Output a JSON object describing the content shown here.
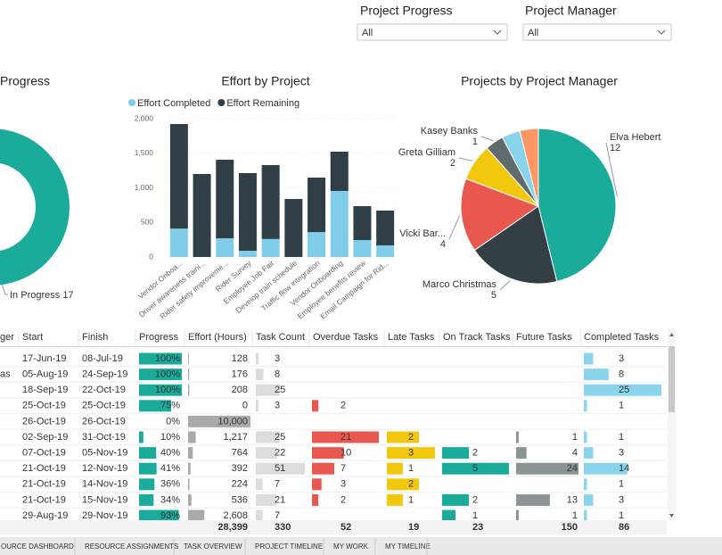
{
  "filters": [
    {
      "label": "Project Progress",
      "value": "All"
    },
    {
      "label": "Project Manager",
      "value": "All"
    }
  ],
  "chart_data": [
    {
      "type": "donut",
      "title": "Progress",
      "categories": [
        "In Progress"
      ],
      "values": [
        17
      ],
      "colors": [
        "#1aab9b"
      ]
    },
    {
      "type": "bar",
      "stacked": true,
      "title": "Effort by Project",
      "categories": [
        "Vendor Onboa...",
        "Driver awareness traini...",
        "Rider safety improveme...",
        "Rider Survey",
        "Employee Job Fair",
        "Develop train schedule",
        "Traffic flow integration",
        "Vendor Onboarding",
        "Employee benefits review",
        "Email Campaign for Rid..."
      ],
      "series": [
        {
          "name": "Effort Completed",
          "color": "#7fcde8",
          "values": [
            410,
            0,
            270,
            90,
            260,
            0,
            360,
            955,
            245,
            168
          ]
        },
        {
          "name": "Effort Remaining",
          "color": "#2f3f45",
          "values": [
            1512,
            1200,
            1136,
            1123,
            1069,
            839,
            788,
            568,
            490,
            503
          ]
        }
      ],
      "ylim": [
        0,
        2000
      ],
      "yticks": [
        0,
        500,
        {
          "value": 1000,
          "label": "1,000"
        },
        {
          "value": 1500,
          "label": "1,500"
        },
        {
          "value": 2000,
          "label": "2,000"
        }
      ],
      "grid": true
    },
    {
      "type": "pie",
      "title": "Projects by Project Manager",
      "categories": [
        "Elva Hebert",
        "Marco Christmas",
        "Vicki Bar...",
        "Greta Gilliam",
        "Kasey Banks",
        null,
        null
      ],
      "values": [
        12,
        5,
        4,
        2,
        1,
        1,
        1
      ],
      "colors": [
        "#1aab9b",
        "#333f44",
        "#e8584f",
        "#f2c80f",
        "#5f6b6d",
        "#8ad4eb",
        "#fe9666"
      ]
    }
  ],
  "table": {
    "columns": [
      {
        "header": "ger",
        "values": [
          null,
          "as",
          null,
          null,
          null,
          null,
          null,
          null,
          null,
          null,
          null
        ]
      },
      {
        "header": "Start",
        "values": [
          "17-Jun-19",
          "05-Aug-19",
          "18-Sep-19",
          "25-Oct-19",
          "26-Oct-19",
          "02-Sep-19",
          "07-Oct-19",
          "21-Oct-19",
          "21-Oct-19",
          "21-Oct-19",
          "29-Aug-19"
        ]
      },
      {
        "header": "Finish",
        "values": [
          "08-Jul-19",
          "24-Sep-19",
          "22-Oct-19",
          "25-Oct-19",
          "26-Oct-19",
          "31-Oct-19",
          "05-Nov-19",
          "12-Nov-19",
          "14-Nov-19",
          "15-Nov-19",
          "29-Nov-19"
        ]
      },
      {
        "header": "Progress",
        "color": "#1aab9b",
        "values": [
          100,
          100,
          100,
          75,
          0,
          10,
          40,
          41,
          36,
          34,
          93
        ],
        "value_labels": [
          "100%",
          "100%",
          "100%",
          "75%",
          "0%",
          "10%",
          "40%",
          "41%",
          "36%",
          "34%",
          "93%"
        ]
      },
      {
        "header": "Effort (Hours)",
        "color": "#a9a9a9",
        "values": [
          128,
          176,
          208,
          0,
          10000,
          1217,
          764,
          392,
          224,
          536,
          2608
        ],
        "value_labels": [
          "128",
          "176",
          "208",
          "0",
          "10,000",
          "1,217",
          "764",
          "392",
          "224",
          "536",
          "2,608"
        ],
        "total": 28399,
        "total_label": "28,399"
      },
      {
        "header": "Task Count",
        "color": "#dcdcdc",
        "values": [
          3,
          8,
          25,
          3,
          null,
          25,
          22,
          51,
          7,
          21,
          7
        ],
        "total": 330
      },
      {
        "header": "Overdue Tasks",
        "color": "#e8584f",
        "values": [
          null,
          null,
          null,
          2,
          null,
          21,
          10,
          7,
          3,
          2,
          null
        ],
        "total": 52
      },
      {
        "header": "Late Tasks",
        "color": "#f2c80f",
        "values": [
          null,
          null,
          null,
          null,
          null,
          2,
          3,
          1,
          2,
          1,
          null
        ],
        "total": 19
      },
      {
        "header": "On Track Tasks",
        "color": "#1aab9b",
        "values": [
          null,
          null,
          null,
          null,
          null,
          null,
          2,
          5,
          null,
          2,
          1
        ],
        "total": 23
      },
      {
        "header": "Future Tasks",
        "color": "#8c9495",
        "values": [
          null,
          null,
          null,
          null,
          null,
          1,
          4,
          24,
          null,
          13,
          1
        ],
        "total": 150
      },
      {
        "header": "Completed Tasks",
        "color": "#8ad4eb",
        "values": [
          3,
          8,
          25,
          1,
          null,
          1,
          3,
          14,
          1,
          3,
          1
        ],
        "total": 86
      }
    ]
  },
  "tabs": [
    "OURCE DASHBOARD",
    "RESOURCE ASSIGNMENTS",
    "TASK OVERVIEW",
    "PROJECT TIMELINE",
    "MY WORK",
    "MY TIMELINE"
  ]
}
